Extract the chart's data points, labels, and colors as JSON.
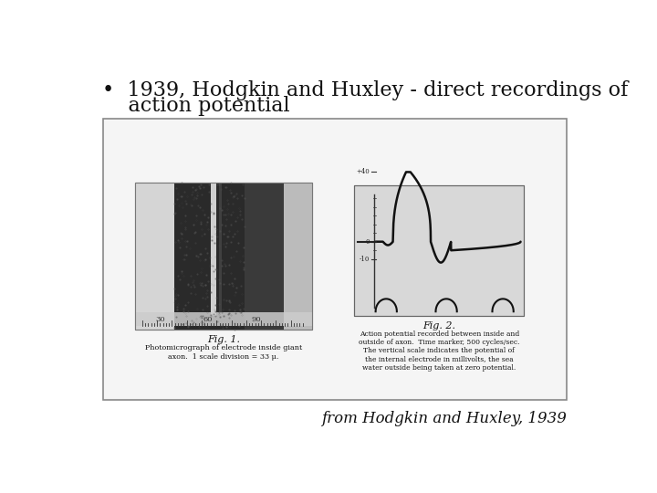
{
  "background_color": "#ffffff",
  "bullet_line1": "•  1939, Hodgkin and Huxley - direct recordings of",
  "bullet_line2": "    action potential",
  "caption_text": "from Hodgkin and Huxley, 1939",
  "fig1_caption": "Fig. 1.",
  "fig1_sub": "Photomicrograph of electrode inside giant\naxon.  1 scale division = 33 μ.",
  "fig2_caption": "Fig. 2.",
  "fig2_sub": "Action potential recorded between inside and\noutside of axon.  Time marker, 500 cycles/sec.\nThe vertical scale indicates the potential of\nthe internal electrode in millivolts, the sea\nwater outside being taken at zero potential.",
  "text_color": "#111111",
  "title_fontsize": 16,
  "caption_fontsize": 12,
  "small_fontsize": 7,
  "box_edge": "#888888",
  "box_face": "#f5f5f5"
}
